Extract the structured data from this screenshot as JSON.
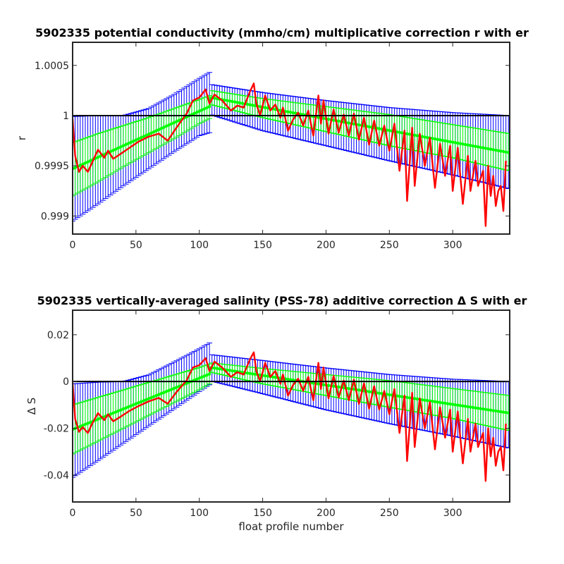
{
  "chart_data": [
    {
      "type": "line",
      "title": "5902335 potential conductivity (mmho/cm) multiplicative correction r with er",
      "xlabel": "",
      "ylabel": "r",
      "xlim": [
        0,
        345
      ],
      "ylim": [
        0.99882,
        1.00073
      ],
      "xticks": [
        0,
        50,
        100,
        150,
        200,
        250,
        300
      ],
      "yticks": [
        0.999,
        0.9995,
        1,
        1.0005
      ],
      "ytick_labels": [
        "0.999",
        "0.9995",
        "1",
        "1.0005"
      ],
      "reference_line": 1,
      "colors": {
        "error_bars": "#0000ff",
        "fit": "#00ff00",
        "observed": "#ff0000",
        "reference": "#000000"
      },
      "series": [
        {
          "kind": "error_bars",
          "x": [
            0,
            20,
            40,
            60,
            80,
            100,
            108,
            109,
            150,
            200,
            250,
            300,
            345
          ],
          "lower": [
            0.99895,
            0.99912,
            0.9993,
            0.99947,
            0.99964,
            0.9998,
            0.99983,
            1.00001,
            0.99985,
            0.9997,
            0.99955,
            0.99941,
            0.99927
          ],
          "upper": [
            0.99999,
            1.0,
            1.0,
            1.00007,
            1.00021,
            1.00037,
            1.00043,
            1.00031,
            1.00023,
            1.00015,
            1.00008,
            1.00003,
            1.0
          ]
        },
        {
          "kind": "error_bars",
          "x": [
            0,
            20,
            40,
            60,
            80,
            100,
            108,
            109,
            150,
            200,
            250,
            300,
            345
          ],
          "lower": [
            0.9992,
            0.99934,
            0.99949,
            0.99963,
            0.99977,
            0.99992,
            0.99997,
            1.00011,
            0.99998,
            0.99984,
            0.9997,
            0.99958,
            0.99945
          ],
          "upper": [
            0.99973,
            0.99982,
            0.9999,
            0.99998,
            1.00007,
            1.00016,
            1.0002,
            1.00025,
            1.00017,
            1.00009,
            1.00001,
            0.99991,
            0.99982
          ]
        },
        {
          "kind": "fit",
          "x": [
            0,
            108,
            109,
            345
          ],
          "y": [
            0.99947,
            1.00009,
            1.00018,
            0.99963
          ]
        },
        {
          "kind": "observed",
          "x": [
            0,
            2,
            5,
            8,
            12,
            15,
            20,
            25,
            28,
            32,
            38,
            45,
            52,
            60,
            68,
            75,
            82,
            90,
            95,
            100,
            105,
            108,
            112,
            118,
            125,
            130,
            135,
            140,
            143,
            145,
            148,
            152,
            156,
            160,
            164,
            166,
            170,
            174,
            178,
            182,
            186,
            190,
            194,
            196,
            198,
            202,
            206,
            210,
            214,
            218,
            222,
            226,
            230,
            234,
            238,
            242,
            246,
            250,
            254,
            258,
            262,
            264,
            268,
            270,
            274,
            278,
            282,
            286,
            290,
            294,
            298,
            300,
            304,
            308,
            312,
            314,
            318,
            320,
            324,
            326,
            328,
            330,
            332,
            334,
            336,
            338,
            340,
            342
          ],
          "y": [
            0.99997,
            0.9996,
            0.99944,
            0.9995,
            0.99944,
            0.99952,
            0.99966,
            0.99958,
            0.99965,
            0.99957,
            0.99962,
            0.99968,
            0.99974,
            0.99979,
            0.99982,
            0.99975,
            0.99988,
            1.00002,
            1.00015,
            1.00018,
            1.00026,
            1.00012,
            1.00021,
            1.00015,
            1.00005,
            1.0001,
            1.00008,
            1.00024,
            1.00032,
            1.00012,
            1.0,
            1.0002,
            1.00005,
            1.00011,
            0.99998,
            1.00008,
            0.99985,
            0.99996,
            1.00003,
            0.9999,
            1.00005,
            0.9998,
            1.0002,
            0.99992,
            1.00015,
            0.99982,
            1.00006,
            0.99983,
            1.00001,
            0.9998,
            1.00002,
            0.99976,
            0.99998,
            0.99971,
            0.99995,
            0.9997,
            0.9999,
            0.99965,
            0.99992,
            0.99945,
            0.99985,
            0.99915,
            0.99988,
            0.9993,
            0.99982,
            0.9995,
            0.99978,
            0.99928,
            0.99972,
            0.9994,
            0.9997,
            0.99925,
            0.99968,
            0.99912,
            0.9996,
            0.99925,
            0.99955,
            0.9993,
            0.99945,
            0.9989,
            0.9995,
            0.9992,
            0.9994,
            0.9991,
            0.99925,
            0.9993,
            0.99905,
            0.99955
          ]
        }
      ]
    },
    {
      "type": "line",
      "title": "5902335 vertically-averaged salinity (PSS-78) additive correction Δ S with er",
      "xlabel": "float profile number",
      "ylabel": "Δ S",
      "xlim": [
        0,
        345
      ],
      "ylim": [
        -0.0515,
        0.0305
      ],
      "xticks": [
        0,
        50,
        100,
        150,
        200,
        250,
        300
      ],
      "yticks": [
        -0.04,
        -0.02,
        0,
        0.02
      ],
      "ytick_labels": [
        "-0.04",
        "-0.02",
        "0",
        "0.02"
      ],
      "reference_line": 0,
      "colors": {
        "error_bars": "#0000ff",
        "fit": "#00ff00",
        "observed": "#ff0000",
        "reference": "#000000"
      },
      "series": [
        {
          "kind": "error_bars",
          "x": [
            0,
            20,
            40,
            60,
            80,
            100,
            108,
            109,
            150,
            200,
            250,
            300,
            345
          ],
          "lower": [
            -0.041,
            -0.0338,
            -0.0264,
            -0.019,
            -0.0117,
            -0.0043,
            -0.0014,
            0.0003,
            -0.0052,
            -0.0121,
            -0.018,
            -0.0233,
            -0.0285
          ],
          "upper": [
            -0.001,
            -0.0003,
            0.0,
            0.0028,
            0.0083,
            0.014,
            0.0165,
            0.0115,
            0.009,
            0.0058,
            0.003,
            0.001,
            0.0
          ]
        },
        {
          "kind": "error_bars",
          "x": [
            0,
            20,
            40,
            60,
            80,
            100,
            108,
            109,
            150,
            200,
            250,
            300,
            345
          ],
          "lower": [
            -0.031,
            -0.0255,
            -0.02,
            -0.0145,
            -0.009,
            -0.0035,
            -0.001,
            0.004,
            -0.001,
            -0.006,
            -0.011,
            -0.0158,
            -0.021
          ],
          "upper": [
            -0.01,
            -0.0068,
            -0.0036,
            -0.0004,
            0.0028,
            0.006,
            0.0075,
            0.008,
            0.0056,
            0.003,
            0.0004,
            -0.003,
            -0.006
          ]
        },
        {
          "kind": "fit",
          "x": [
            0,
            108,
            109,
            345
          ],
          "y": [
            -0.0205,
            0.0032,
            0.006,
            -0.0135
          ]
        },
        {
          "kind": "observed",
          "x": [
            0,
            2,
            5,
            8,
            12,
            15,
            20,
            25,
            28,
            32,
            38,
            45,
            52,
            60,
            68,
            75,
            82,
            90,
            95,
            100,
            105,
            108,
            112,
            118,
            125,
            130,
            135,
            140,
            143,
            145,
            148,
            152,
            156,
            160,
            164,
            166,
            170,
            174,
            178,
            182,
            186,
            190,
            194,
            196,
            198,
            202,
            206,
            210,
            214,
            218,
            222,
            226,
            230,
            234,
            238,
            242,
            246,
            250,
            254,
            258,
            262,
            264,
            268,
            270,
            274,
            278,
            282,
            286,
            290,
            294,
            298,
            300,
            304,
            308,
            312,
            314,
            318,
            320,
            324,
            326,
            328,
            330,
            332,
            334,
            336,
            338,
            340,
            342
          ],
          "y": [
            -0.0005,
            -0.016,
            -0.0215,
            -0.0195,
            -0.022,
            -0.0185,
            -0.0135,
            -0.0165,
            -0.014,
            -0.017,
            -0.015,
            -0.0125,
            -0.0105,
            -0.0085,
            -0.007,
            -0.0095,
            -0.0045,
            0.0005,
            0.006,
            0.007,
            0.01,
            0.0045,
            0.0085,
            0.006,
            0.002,
            0.004,
            0.003,
            0.0095,
            0.0125,
            0.0045,
            0.0,
            0.008,
            0.002,
            0.0045,
            -0.001,
            0.003,
            -0.006,
            -0.0015,
            0.0012,
            -0.004,
            0.002,
            -0.008,
            0.008,
            -0.0032,
            0.006,
            -0.0072,
            0.0024,
            -0.0068,
            0.0004,
            -0.008,
            0.0008,
            -0.0096,
            -0.0008,
            -0.0116,
            -0.002,
            -0.012,
            -0.004,
            -0.014,
            -0.0032,
            -0.022,
            -0.006,
            -0.034,
            -0.0048,
            -0.028,
            -0.0072,
            -0.02,
            -0.0088,
            -0.029,
            -0.011,
            -0.024,
            -0.012,
            -0.03,
            -0.0128,
            -0.035,
            -0.016,
            -0.03,
            -0.018,
            -0.028,
            -0.022,
            -0.0425,
            -0.02,
            -0.032,
            -0.024,
            -0.036,
            -0.03,
            -0.028,
            -0.038,
            -0.018
          ]
        }
      ]
    }
  ]
}
